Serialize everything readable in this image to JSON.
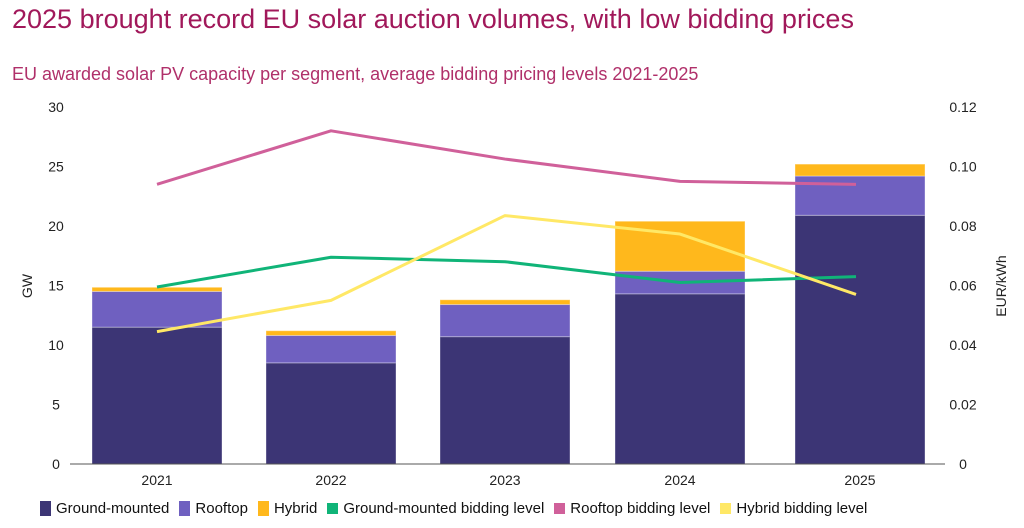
{
  "title": "2025 brought record EU solar auction volumes, with low bidding prices",
  "subtitle": "EU awarded solar PV capacity per segment, average bidding pricing levels 2021-2025",
  "chart_data": {
    "type": "bar",
    "stacked": true,
    "categories": [
      "2021",
      "2022",
      "2023",
      "2024",
      "2025"
    ],
    "ylabel": "GW",
    "ylim": [
      0,
      30
    ],
    "yticks": [
      "0",
      "5",
      "10",
      "15",
      "20",
      "25",
      "30"
    ],
    "y2label": "EUR/kWh",
    "y2lim": [
      0,
      0.12
    ],
    "y2ticks": [
      "0",
      "0.02",
      "0.04",
      "0.06",
      "0.08",
      "0.10",
      "0.12"
    ],
    "grid": false,
    "legend_position": "bottom",
    "series": [
      {
        "name": "Ground-mounted",
        "kind": "bar",
        "axis": "left",
        "color": "#3c3575",
        "values": [
          11.5,
          8.5,
          10.7,
          14.3,
          20.9
        ]
      },
      {
        "name": "Rooftop",
        "kind": "bar",
        "axis": "left",
        "color": "#6f60c0",
        "values": [
          3.0,
          2.3,
          2.7,
          1.9,
          3.3
        ]
      },
      {
        "name": "Hybrid",
        "kind": "bar",
        "axis": "left",
        "color": "#ffb81c",
        "values": [
          0.35,
          0.4,
          0.4,
          4.2,
          1.0
        ]
      },
      {
        "name": "Ground-mounted bidding level",
        "kind": "line",
        "axis": "right",
        "color": "#10b478",
        "values": [
          0.0595,
          0.0695,
          0.068,
          0.061,
          0.063
        ]
      },
      {
        "name": "Rooftop bidding level",
        "kind": "line",
        "axis": "right",
        "color": "#d0609a",
        "values": [
          0.094,
          0.112,
          0.1025,
          0.095,
          0.094
        ]
      },
      {
        "name": "Hybrid bidding level",
        "kind": "line",
        "axis": "right",
        "color": "#ffe866",
        "values": [
          0.0445,
          0.055,
          0.0835,
          0.0773,
          0.057
        ]
      }
    ]
  }
}
